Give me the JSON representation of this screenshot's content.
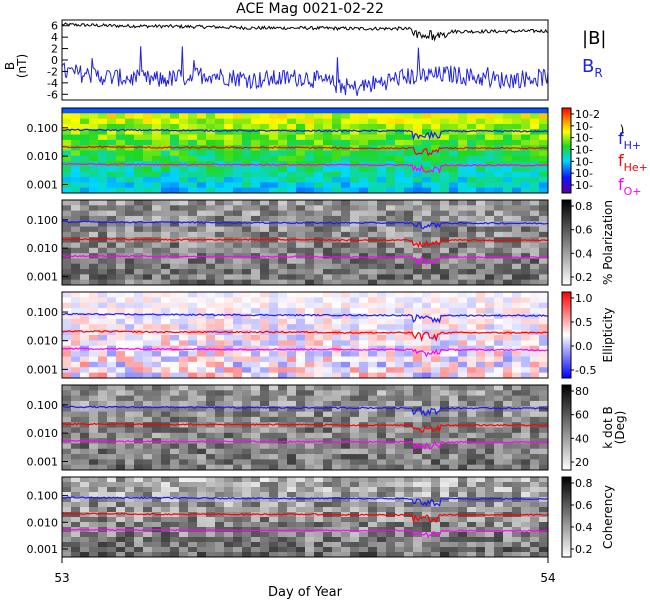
{
  "title": "ACE Mag 0021-02-22",
  "xlabel": "Day of Year",
  "x_ticks": [
    "53",
    "54"
  ],
  "colors": {
    "bmag": "#000000",
    "br": "#2222dd",
    "fH": "#1a1aff",
    "fHe": "#ff0000",
    "fO": "#ff00ff"
  },
  "legend": {
    "bmag": "|B|",
    "br": "B",
    "br_sub": "R",
    "fH": "f",
    "fH_sub": "H+",
    "fHe": "f",
    "fHe_sub": "He+",
    "fO": "f",
    "fO_sub": "O+"
  },
  "chart_data": [
    {
      "type": "line",
      "panel": "magnetic-field",
      "ylabel": "B",
      "yunit": "(nT)",
      "ylim": [
        -7,
        7
      ],
      "yticks": [
        "6",
        "4",
        "2",
        "0",
        "-2",
        "-4",
        "-6"
      ],
      "xlim": [
        53,
        54
      ],
      "series": [
        {
          "name": "|B|",
          "x": [
            53.0,
            53.1,
            53.2,
            53.3,
            53.4,
            53.5,
            53.6,
            53.7,
            53.8,
            53.9,
            54.0
          ],
          "values": [
            6.2,
            6.0,
            5.9,
            5.8,
            5.6,
            5.6,
            5.5,
            5.5,
            5.0,
            5.0,
            5.1
          ]
        },
        {
          "name": "B",
          "x": [
            53.0,
            53.1,
            53.2,
            53.3,
            53.4,
            53.5,
            53.6,
            53.7,
            53.8,
            53.9,
            54.0
          ],
          "values": [
            -2.0,
            -3.0,
            -3.5,
            -2.5,
            -3.5,
            -3.0,
            -5.0,
            -3.0,
            -2.5,
            -3.5,
            -3.0
          ]
        }
      ]
    },
    {
      "type": "heatmap",
      "panel": "power-spectrum",
      "ylabel": "",
      "yticks": [
        "0.100",
        "0.010",
        "0.001"
      ],
      "ylim": [
        0.0005,
        0.5
      ],
      "scale": "log",
      "colorbar_label": ")",
      "colorbar_ticks": [
        "10^-2",
        "10^-",
        "10^-",
        "10^-",
        "10^-",
        "10^-",
        "10^-"
      ],
      "series": [
        {
          "name": "f H+",
          "values": [
            0.085,
            0.083,
            0.082,
            0.08,
            0.079,
            0.078,
            0.078,
            0.077,
            0.076,
            0.076,
            0.075
          ]
        },
        {
          "name": "f He+",
          "values": [
            0.021,
            0.021,
            0.02,
            0.02,
            0.02,
            0.02,
            0.019,
            0.019,
            0.019,
            0.019,
            0.019
          ]
        },
        {
          "name": "f O+",
          "values": [
            0.0053,
            0.0052,
            0.0051,
            0.005,
            0.005,
            0.005,
            0.0049,
            0.0049,
            0.0048,
            0.0048,
            0.0047
          ]
        }
      ]
    },
    {
      "type": "heatmap",
      "panel": "polarization",
      "yticks": [
        "0.100",
        "0.010",
        "0.001"
      ],
      "colorbar_label": "% Polarization",
      "colorbar_ticks": [
        "0.8",
        "0.6",
        "0.4",
        "0.2"
      ]
    },
    {
      "type": "heatmap",
      "panel": "ellipticity",
      "yticks": [
        "0.100",
        "0.010",
        "0.001"
      ],
      "colorbar_label": "Ellipticity",
      "colorbar_ticks": [
        "1.0",
        "0.5",
        "0.0",
        "-0.5"
      ]
    },
    {
      "type": "heatmap",
      "panel": "k-dot-b",
      "yticks": [
        "0.100",
        "0.010",
        "0.001"
      ],
      "colorbar_label": "k dot B",
      "colorbar_unit": "(Deg)",
      "colorbar_ticks": [
        "80",
        "60",
        "40",
        "20"
      ]
    },
    {
      "type": "heatmap",
      "panel": "coherency",
      "yticks": [
        "0.100",
        "0.010",
        "0.001"
      ],
      "colorbar_label": "Coherency",
      "colorbar_ticks": [
        "0.8",
        "0.6",
        "0.4",
        "0.2"
      ]
    }
  ]
}
